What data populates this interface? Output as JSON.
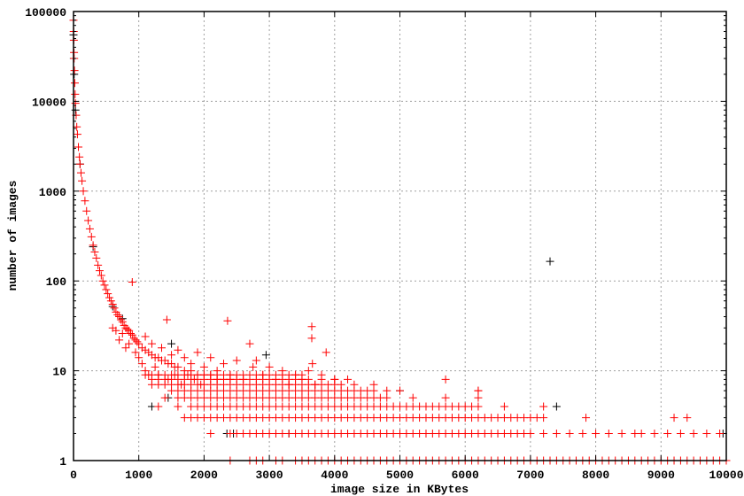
{
  "chart_data": {
    "type": "scatter",
    "title": "",
    "xlabel": "image size in KBytes",
    "ylabel": "number of images",
    "xlim": [
      0,
      10000
    ],
    "ylim": [
      1,
      100000
    ],
    "yscale": "log",
    "grid": true,
    "legend": "none",
    "marker": "plus",
    "x_ticks": [
      "0",
      "1000",
      "2000",
      "3000",
      "4000",
      "5000",
      "6000",
      "7000",
      "8000",
      "9000",
      "10000"
    ],
    "y_ticks": [
      "1",
      "10",
      "100",
      "1000",
      "10000",
      "100000"
    ],
    "series": [
      {
        "color": "#000000",
        "points": [
          [
            0,
            55000
          ],
          [
            5,
            30000
          ],
          [
            10,
            20000
          ],
          [
            30,
            8000
          ],
          [
            100,
            2000
          ],
          [
            300,
            240
          ],
          [
            600,
            52
          ],
          [
            750,
            38
          ],
          [
            1200,
            4
          ],
          [
            1450,
            5
          ],
          [
            1500,
            20
          ],
          [
            2350,
            2
          ],
          [
            2450,
            2
          ],
          [
            2950,
            15
          ],
          [
            3300,
            2
          ],
          [
            5000,
            6
          ],
          [
            7300,
            165
          ],
          [
            7400,
            4
          ],
          [
            9950,
            2
          ]
        ]
      },
      {
        "color": "#ff0000",
        "curve": [
          [
            0,
            80000
          ],
          [
            3,
            60000
          ],
          [
            5,
            48000
          ],
          [
            8,
            35000
          ],
          [
            10,
            30000
          ],
          [
            15,
            22000
          ],
          [
            20,
            16000
          ],
          [
            25,
            12000
          ],
          [
            30,
            9500
          ],
          [
            40,
            7000
          ],
          [
            50,
            5200
          ],
          [
            60,
            4300
          ],
          [
            75,
            3100
          ],
          [
            90,
            2400
          ],
          [
            100,
            2000
          ],
          [
            115,
            1600
          ],
          [
            130,
            1300
          ],
          [
            150,
            1000
          ],
          [
            175,
            780
          ],
          [
            200,
            600
          ],
          [
            225,
            470
          ],
          [
            250,
            380
          ],
          [
            275,
            310
          ],
          [
            300,
            250
          ],
          [
            325,
            210
          ],
          [
            350,
            180
          ],
          [
            375,
            150
          ],
          [
            400,
            130
          ],
          [
            425,
            115
          ],
          [
            450,
            100
          ],
          [
            475,
            90
          ],
          [
            500,
            80
          ],
          [
            525,
            72
          ],
          [
            550,
            65
          ],
          [
            575,
            60
          ],
          [
            600,
            55
          ],
          [
            625,
            50
          ],
          [
            650,
            45
          ],
          [
            675,
            42
          ],
          [
            700,
            40
          ],
          [
            725,
            37
          ],
          [
            750,
            35
          ],
          [
            775,
            32
          ],
          [
            800,
            30
          ],
          [
            825,
            29
          ],
          [
            850,
            28
          ],
          [
            875,
            26
          ],
          [
            900,
            25
          ],
          [
            925,
            23
          ],
          [
            950,
            22
          ],
          [
            975,
            21
          ],
          [
            1000,
            20
          ],
          [
            1050,
            18
          ],
          [
            1100,
            17
          ],
          [
            1150,
            16
          ],
          [
            1200,
            15
          ],
          [
            1250,
            14
          ],
          [
            1300,
            14
          ],
          [
            1350,
            13
          ],
          [
            1400,
            13
          ],
          [
            1450,
            12
          ],
          [
            1500,
            12
          ],
          [
            1550,
            11
          ],
          [
            1600,
            11
          ],
          [
            1700,
            10
          ],
          [
            1800,
            10
          ],
          [
            1900,
            9
          ],
          [
            2000,
            9
          ],
          [
            2100,
            9
          ],
          [
            2200,
            8
          ],
          [
            2300,
            8
          ],
          [
            2400,
            8
          ]
        ],
        "scatter": [
          [
            600,
            30
          ],
          [
            650,
            28
          ],
          [
            700,
            22
          ],
          [
            750,
            26
          ],
          [
            800,
            18
          ],
          [
            850,
            20
          ],
          [
            900,
            97
          ],
          [
            950,
            16
          ],
          [
            1000,
            14
          ],
          [
            1050,
            12
          ],
          [
            1100,
            10
          ],
          [
            1100,
            24
          ],
          [
            1150,
            9
          ],
          [
            1200,
            20
          ],
          [
            1250,
            11
          ],
          [
            1300,
            9
          ],
          [
            1350,
            18
          ],
          [
            1430,
            37
          ],
          [
            1450,
            8
          ],
          [
            1500,
            15
          ],
          [
            1550,
            9
          ],
          [
            1600,
            17
          ],
          [
            1650,
            7
          ],
          [
            1700,
            14
          ],
          [
            1750,
            9
          ],
          [
            1800,
            12
          ],
          [
            1850,
            8
          ],
          [
            1900,
            16
          ],
          [
            1950,
            7
          ],
          [
            2000,
            11
          ],
          [
            2100,
            14
          ],
          [
            2200,
            10
          ],
          [
            2300,
            12
          ],
          [
            2360,
            36
          ],
          [
            2400,
            9
          ],
          [
            2500,
            13
          ],
          [
            2600,
            8
          ],
          [
            2700,
            20
          ],
          [
            2750,
            11
          ],
          [
            2800,
            13
          ],
          [
            2900,
            9
          ],
          [
            3000,
            11
          ],
          [
            3100,
            8
          ],
          [
            3200,
            10
          ],
          [
            3300,
            7
          ],
          [
            3400,
            9
          ],
          [
            3500,
            8
          ],
          [
            3600,
            10
          ],
          [
            3650,
            31
          ],
          [
            3650,
            23
          ],
          [
            3660,
            12
          ],
          [
            3700,
            7
          ],
          [
            3800,
            9
          ],
          [
            3870,
            16
          ],
          [
            3900,
            7
          ],
          [
            4000,
            8
          ],
          [
            4100,
            7
          ],
          [
            4200,
            8
          ],
          [
            4300,
            7
          ],
          [
            4500,
            6
          ],
          [
            4600,
            7
          ],
          [
            4800,
            6
          ],
          [
            5000,
            6
          ],
          [
            5700,
            8
          ],
          [
            6200,
            6
          ]
        ],
        "rows": [
          {
            "y": 1,
            "x": [
              2400,
              2700,
              2800,
              2900,
              3100,
              3200,
              3400,
              3500,
              3600,
              3700,
              3800,
              3900,
              4000,
              4100,
              4200,
              4300,
              4400,
              4500,
              4600,
              4700,
              4800,
              4900,
              5000,
              5100,
              5200,
              5300,
              5400,
              5500,
              5600,
              5700,
              5800,
              5900,
              6000,
              6100,
              6200,
              6300,
              6400,
              6500,
              6600,
              6700,
              6800,
              6900,
              7000,
              7100,
              7200,
              7300,
              7400,
              7500,
              7600,
              7700,
              7800,
              7900,
              8000,
              8100,
              8200,
              8300,
              8400,
              8500,
              8600,
              8700,
              8800,
              8900,
              9000,
              9100,
              9200,
              9300,
              9400,
              9500,
              9600,
              9700,
              9800,
              9900,
              10000
            ]
          },
          {
            "y": 2,
            "x": [
              2100,
              2400,
              2500,
              2600,
              2700,
              2800,
              2900,
              3000,
              3100,
              3200,
              3300,
              3400,
              3500,
              3600,
              3700,
              3800,
              3900,
              4000,
              4100,
              4200,
              4300,
              4400,
              4500,
              4600,
              4700,
              4800,
              4900,
              5000,
              5100,
              5200,
              5300,
              5400,
              5500,
              5600,
              5700,
              5800,
              5900,
              6000,
              6100,
              6200,
              6300,
              6400,
              6500,
              6600,
              6700,
              6800,
              6900,
              7000,
              7200,
              7400,
              7600,
              7800,
              8000,
              8200,
              8400,
              8600,
              8700,
              8900,
              9100,
              9300,
              9500,
              9700,
              9900
            ]
          },
          {
            "y": 3,
            "x": [
              1700,
              1800,
              1900,
              2000,
              2100,
              2200,
              2300,
              2400,
              2500,
              2600,
              2700,
              2800,
              2900,
              3000,
              3100,
              3200,
              3300,
              3400,
              3500,
              3600,
              3700,
              3800,
              3900,
              4000,
              4100,
              4200,
              4300,
              4400,
              4500,
              4600,
              4700,
              4800,
              4900,
              5000,
              5100,
              5200,
              5300,
              5400,
              5500,
              5600,
              5700,
              5800,
              5900,
              6000,
              6100,
              6200,
              6300,
              6400,
              6500,
              6600,
              6700,
              6800,
              6900,
              7000,
              7100,
              7200,
              7850,
              9200,
              9400
            ]
          },
          {
            "y": 4,
            "x": [
              1300,
              1600,
              1800,
              1900,
              2000,
              2100,
              2200,
              2300,
              2400,
              2500,
              2600,
              2700,
              2800,
              2900,
              3000,
              3100,
              3200,
              3300,
              3400,
              3500,
              3600,
              3700,
              3800,
              3900,
              4000,
              4100,
              4200,
              4300,
              4400,
              4500,
              4600,
              4700,
              4800,
              4900,
              5000,
              5100,
              5200,
              5300,
              5400,
              5500,
              5600,
              5700,
              5800,
              5900,
              6000,
              6100,
              6200,
              6600,
              7200
            ]
          },
          {
            "y": 5,
            "x": [
              1400,
              1600,
              1700,
              1800,
              1900,
              2000,
              2100,
              2200,
              2300,
              2400,
              2500,
              2600,
              2700,
              2800,
              2900,
              3000,
              3100,
              3200,
              3300,
              3400,
              3500,
              3600,
              3700,
              3800,
              3900,
              4000,
              4100,
              4200,
              4300,
              4400,
              4500,
              4600,
              4700,
              4800,
              5200,
              5700,
              6200
            ]
          },
          {
            "y": 6,
            "x": [
              1500,
              1600,
              1700,
              1800,
              1900,
              2000,
              2100,
              2200,
              2300,
              2400,
              2500,
              2600,
              2700,
              2800,
              2900,
              3000,
              3100,
              3200,
              3300,
              3400,
              3500,
              3600,
              3700,
              3800,
              3900,
              4000,
              4100,
              4200,
              4300,
              4400,
              4600,
              6200
            ]
          },
          {
            "y": 7,
            "x": [
              1200,
              1300,
              1400,
              1500,
              1600,
              1700,
              1800,
              1900,
              2000,
              2100,
              2200,
              2300,
              2400,
              2500,
              2600,
              2700,
              2800,
              2900,
              3000,
              3100,
              3200,
              3300,
              3400,
              3500,
              3600,
              3700,
              3800,
              4000
            ]
          },
          {
            "y": 8,
            "x": [
              1200,
              1300,
              1400,
              1500,
              1600,
              1700,
              1800,
              1900,
              2000,
              2100,
              2200,
              2300,
              2400,
              2500,
              2600,
              2700,
              2800,
              2900,
              3000,
              3100,
              3200,
              3300,
              3400,
              3500,
              3600,
              3800,
              4000
            ]
          },
          {
            "y": 9,
            "x": [
              1100,
              1200,
              1300,
              1400,
              1500,
              1600,
              1700,
              1800,
              1900,
              2000,
              2100,
              2200,
              2300,
              2400,
              2500,
              2600,
              2700,
              2800,
              2900,
              3000,
              3100,
              3200,
              3300,
              3400,
              3500
            ]
          }
        ]
      }
    ]
  }
}
